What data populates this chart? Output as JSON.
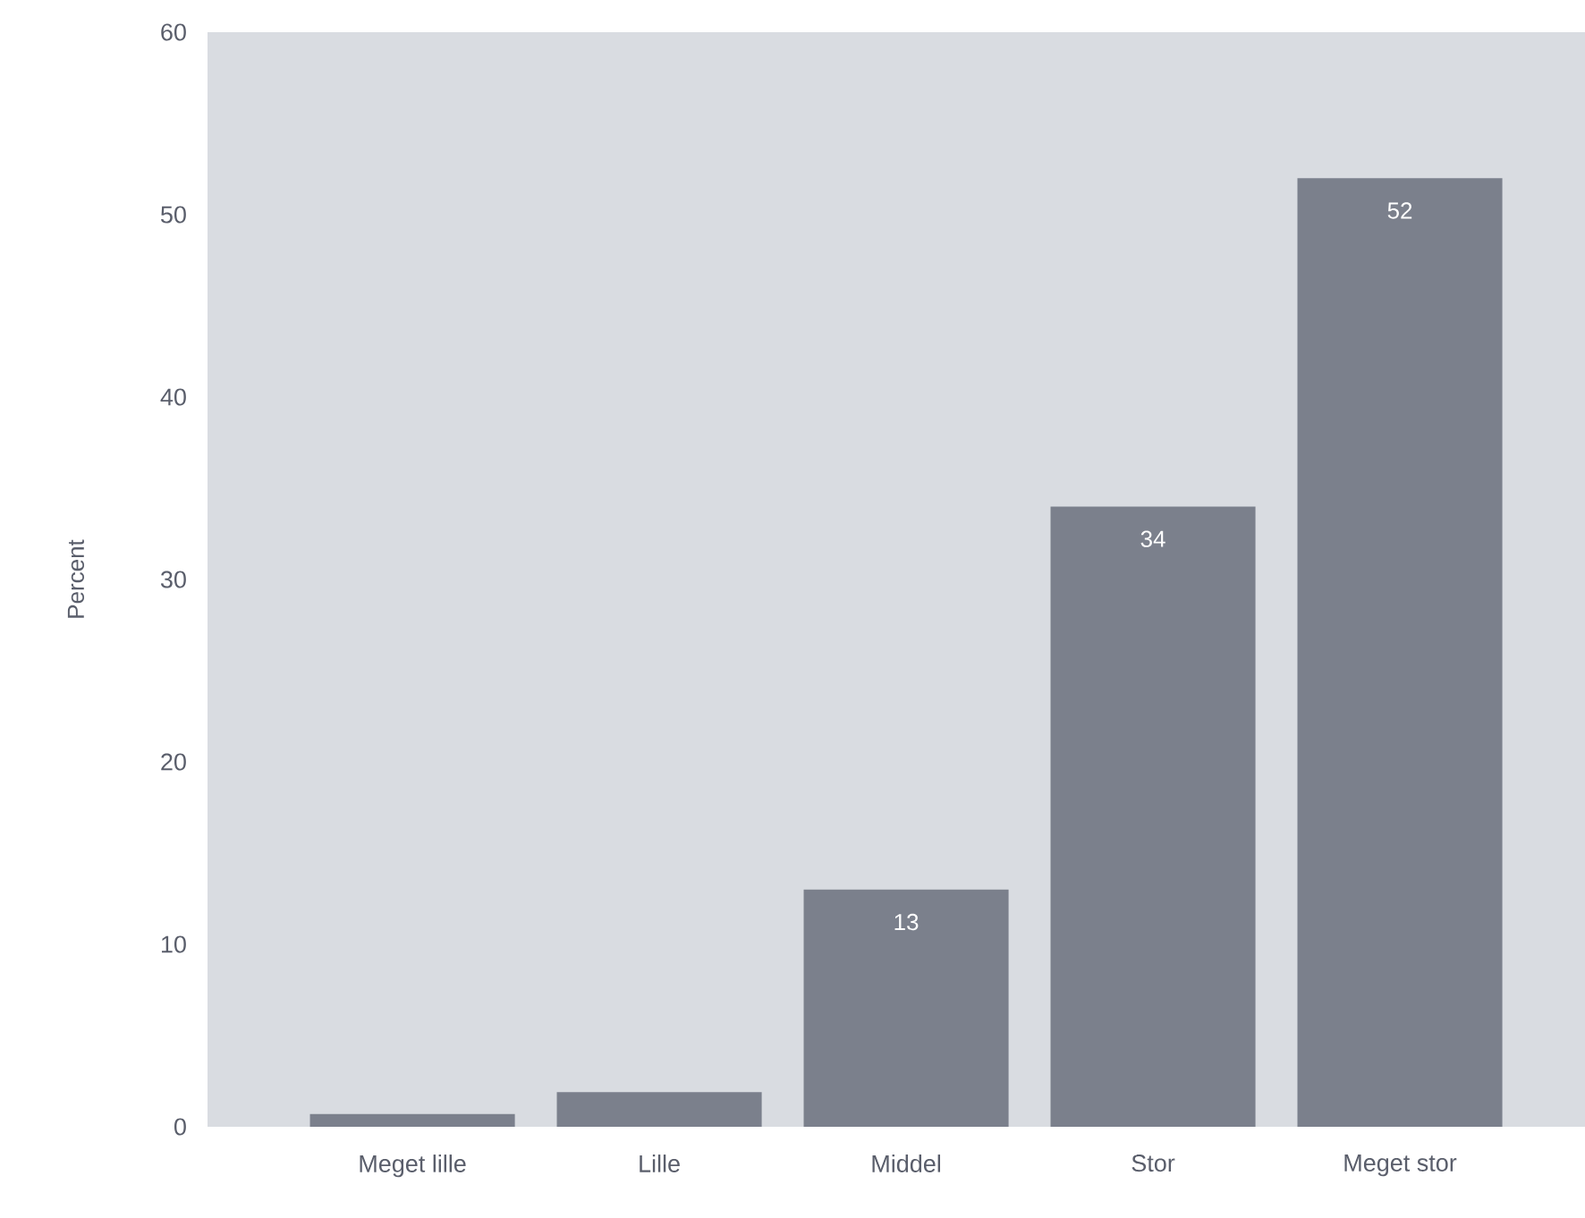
{
  "chart_data": {
    "type": "bar",
    "ylabel": "Percent",
    "categories": [
      "Meget lille",
      "Lille",
      "Middel",
      "Stor",
      "Meget stor"
    ],
    "values": [
      0.7,
      1.9,
      13,
      34,
      52
    ],
    "value_labels": [
      null,
      null,
      "13",
      "34",
      "52"
    ],
    "color": "#7b808c",
    "ylim": [
      0,
      60
    ],
    "yticks": [
      0,
      10,
      20,
      30,
      40,
      50,
      60
    ],
    "grid": false
  }
}
